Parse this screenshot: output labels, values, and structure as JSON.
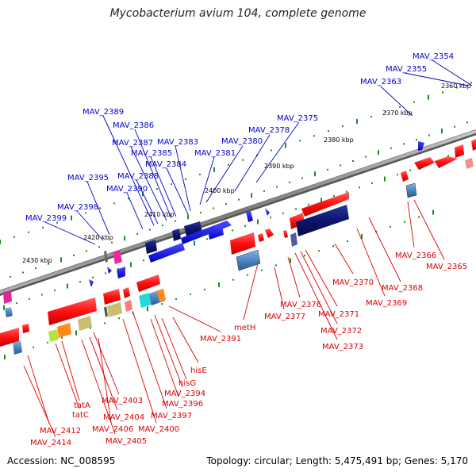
{
  "title": "Mycobacterium avium 104, complete genome",
  "footer": {
    "accession": "Accession: NC_008595",
    "summary": "Topology: circular; Length: 5,475,491 bp; Genes: 5,170"
  },
  "colors": {
    "backbone": "#8c8c8c",
    "tick": "#1f8a1f",
    "label_upper": "#0000cc",
    "label_lower": "#dd0000",
    "gene_red": "#ff1f1f",
    "gene_navy": "#0c1470",
    "gene_blue": "#1a1aee"
  },
  "kbp_labels": [
    "2360 kbp",
    "2370 kbp",
    "2380 kbp",
    "2390 kbp",
    "2400 kbp",
    "2410 kbp",
    "2420 kbp",
    "2430 kbp"
  ],
  "upper_labels": [
    "MAV_2354",
    "MAV_2355",
    "MAV_2363",
    "MAV_2375",
    "MAV_2378",
    "MAV_2380",
    "MAV_2381",
    "MAV_2383",
    "MAV_2384",
    "MAV_2385",
    "MAV_2386",
    "MAV_2387",
    "MAV_2388",
    "MAV_2389",
    "MAV_2390",
    "MAV_2395",
    "MAV_2398",
    "MAV_2399"
  ],
  "lower_labels": [
    "MAV_2365",
    "MAV_2366",
    "MAV_2368",
    "MAV_2369",
    "MAV_2370",
    "MAV_2371",
    "MAV_2372",
    "MAV_2373",
    "MAV_2376",
    "MAV_2377",
    "metH",
    "MAV_2391",
    "hisE",
    "hisG",
    "MAV_2394",
    "MAV_2396",
    "MAV_2397",
    "MAV_2400",
    "MAV_2403",
    "MAV_2404",
    "MAV_2405",
    "MAV_2406",
    "tatA",
    "tatC",
    "MAV_2412",
    "MAV_2414"
  ]
}
